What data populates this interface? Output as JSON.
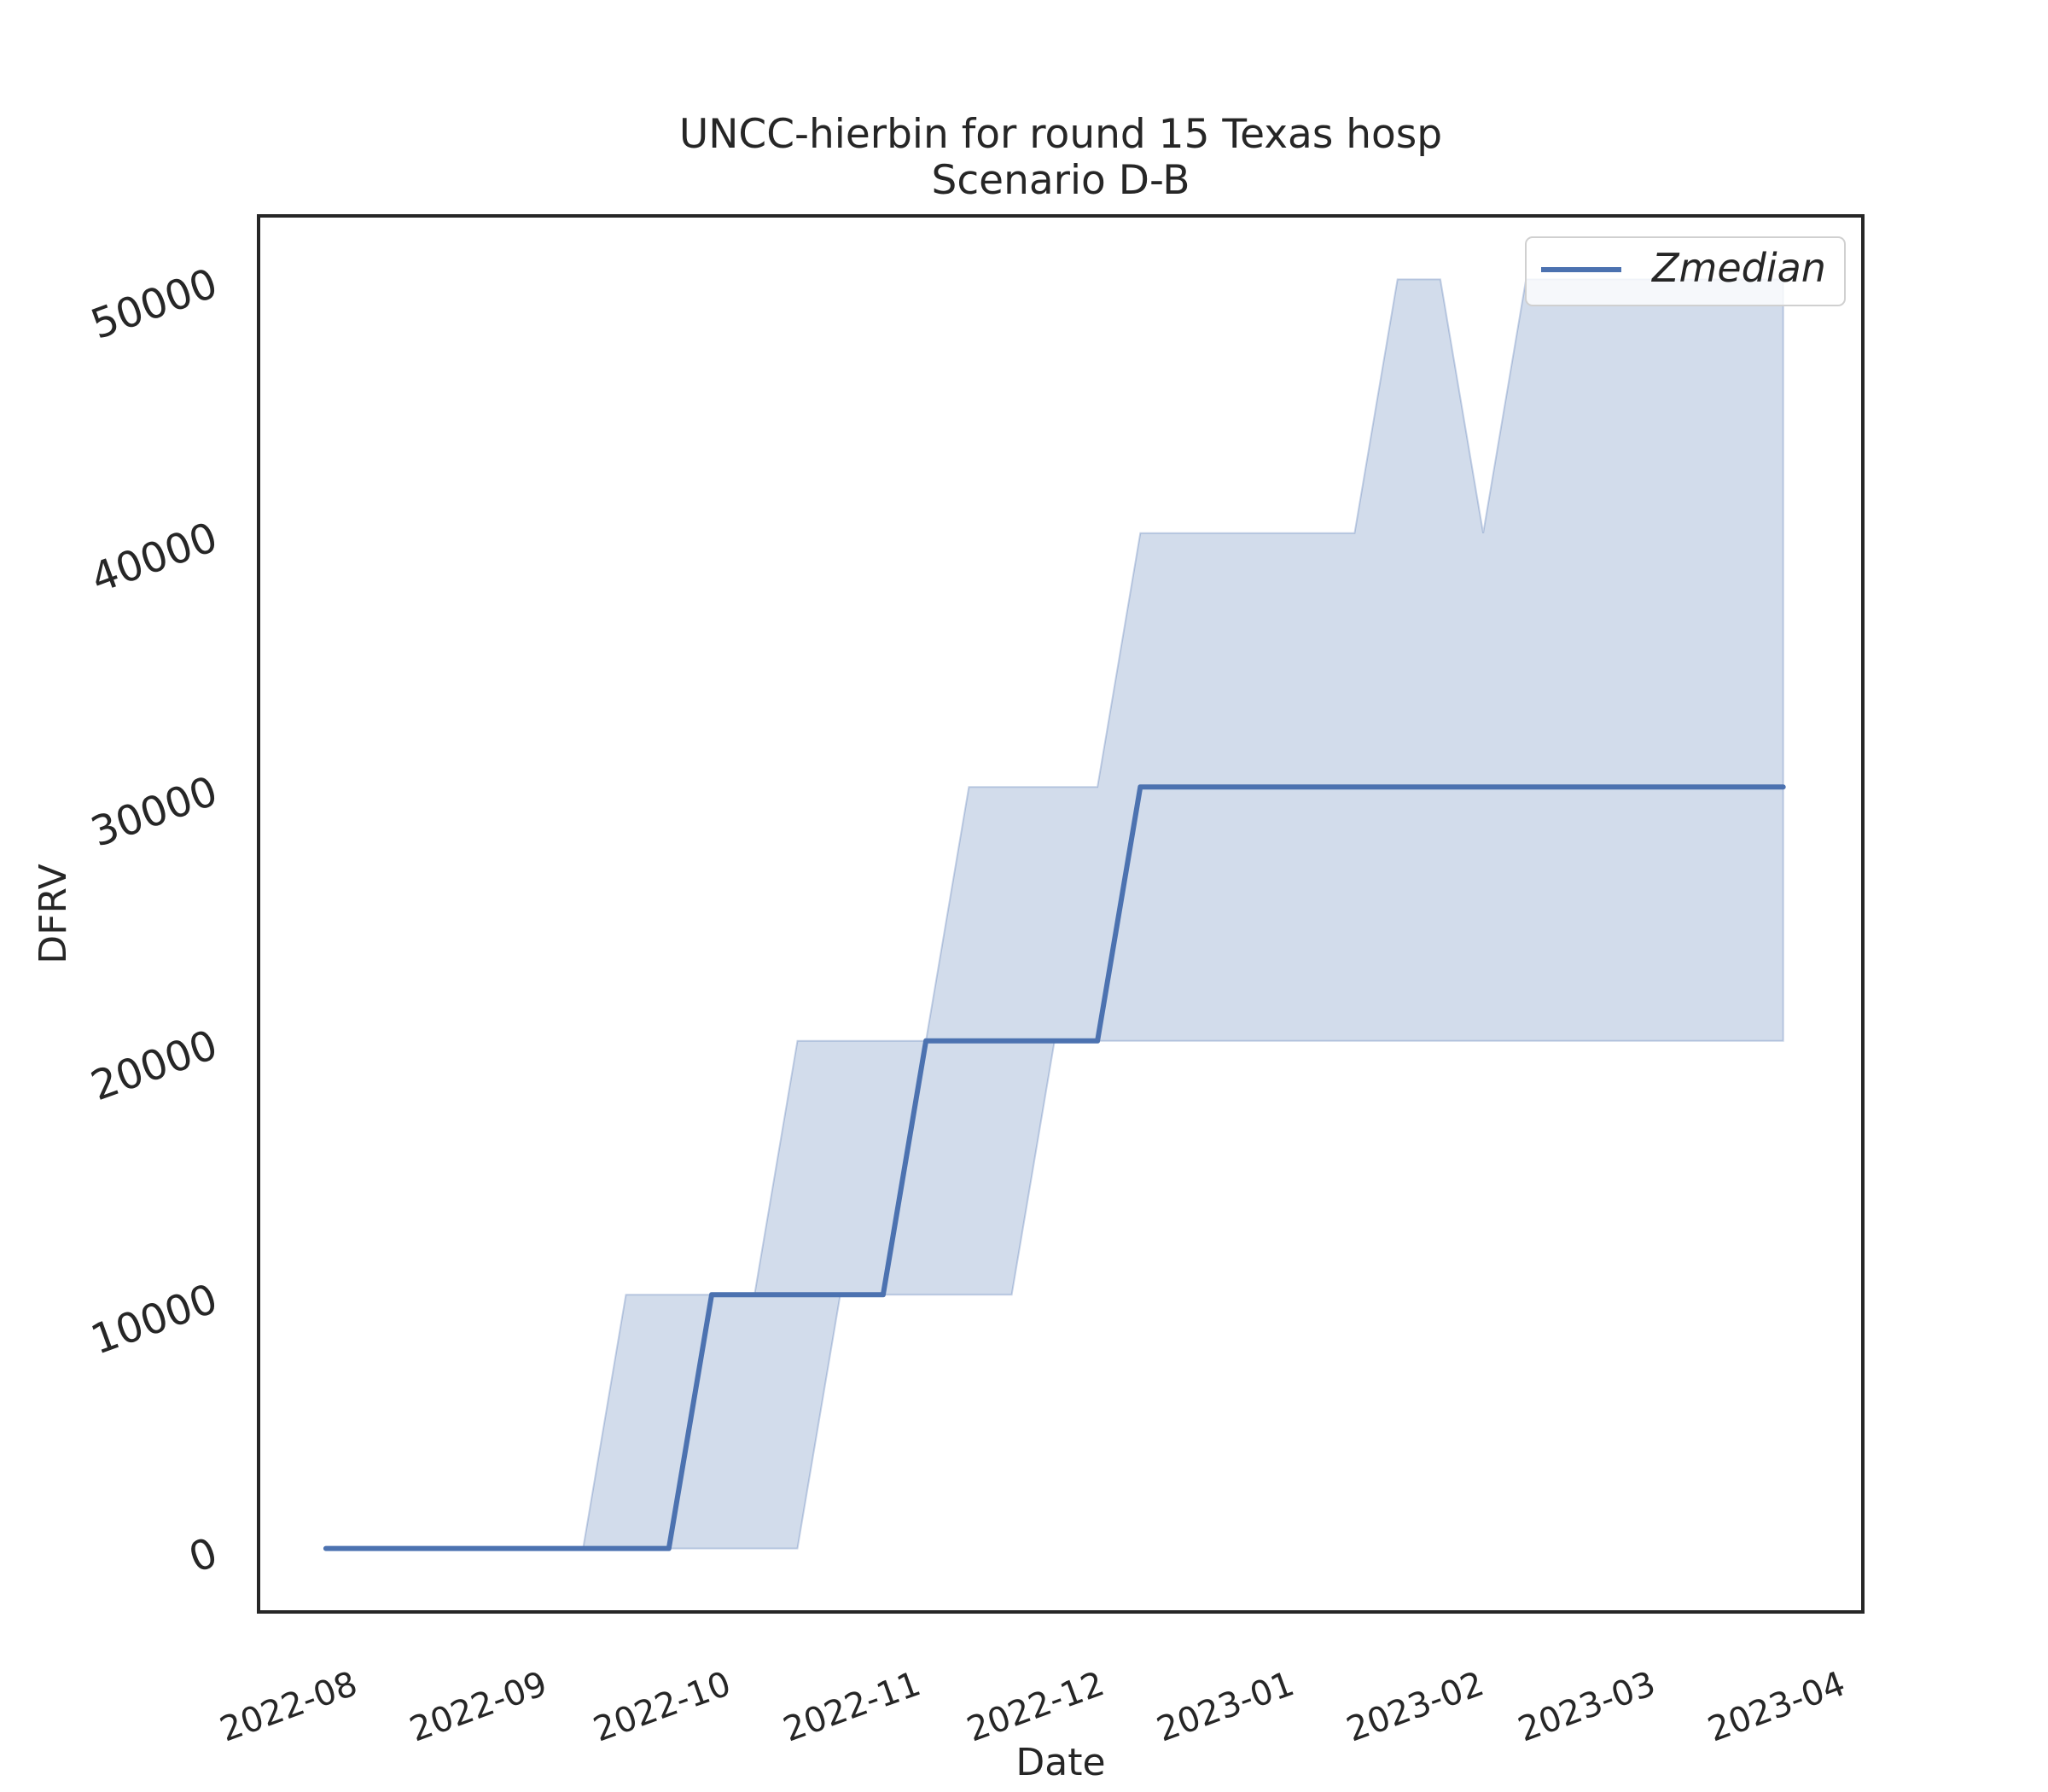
{
  "chart_data": {
    "type": "line",
    "title": "UNCC-hierbin for round 15 Texas hosp",
    "subtitle": "Scenario D-B",
    "xlabel": "Date",
    "ylabel": "DFRV",
    "x_ticks": [
      "2022-08",
      "2022-09",
      "2022-10",
      "2022-11",
      "2022-12",
      "2023-01",
      "2023-02",
      "2023-03",
      "2023-04"
    ],
    "y_ticks": [
      "0",
      "10000",
      "20000",
      "30000",
      "40000",
      "50000"
    ],
    "xlim": [
      "2022-07-19",
      "2023-04-07"
    ],
    "ylim": [
      -2500,
      52500
    ],
    "legend": {
      "position": "top-right",
      "entries": [
        "Zmedian"
      ]
    },
    "grid": false,
    "colors": {
      "line": "#4c72b0",
      "band": "#4c72b0"
    },
    "x": [
      "2022-07-30",
      "2022-08-06",
      "2022-08-13",
      "2022-08-20",
      "2022-08-27",
      "2022-09-03",
      "2022-09-10",
      "2022-09-17",
      "2022-09-24",
      "2022-10-01",
      "2022-10-08",
      "2022-10-15",
      "2022-10-22",
      "2022-10-29",
      "2022-11-05",
      "2022-11-12",
      "2022-11-19",
      "2022-11-26",
      "2022-12-03",
      "2022-12-10",
      "2022-12-17",
      "2022-12-24",
      "2022-12-31",
      "2023-01-07",
      "2023-01-14",
      "2023-01-21",
      "2023-01-28",
      "2023-02-04",
      "2023-02-11",
      "2023-02-18",
      "2023-02-25",
      "2023-03-04",
      "2023-03-11",
      "2023-03-18",
      "2023-03-25"
    ],
    "series": [
      {
        "name": "Zmedian",
        "values": [
          0,
          0,
          0,
          0,
          0,
          0,
          0,
          0,
          0,
          10000,
          10000,
          10000,
          10000,
          10000,
          20000,
          20000,
          20000,
          20000,
          20000,
          30000,
          30000,
          30000,
          30000,
          30000,
          30000,
          30000,
          30000,
          30000,
          30000,
          30000,
          30000,
          30000,
          30000,
          30000,
          30000
        ]
      }
    ],
    "band": {
      "lower": [
        0,
        0,
        0,
        0,
        0,
        0,
        0,
        0,
        0,
        0,
        0,
        0,
        10000,
        10000,
        10000,
        10000,
        10000,
        20000,
        20000,
        20000,
        20000,
        20000,
        20000,
        20000,
        20000,
        20000,
        20000,
        20000,
        20000,
        20000,
        20000,
        20000,
        20000,
        20000,
        20000
      ],
      "upper": [
        0,
        0,
        0,
        0,
        0,
        0,
        0,
        10000,
        10000,
        10000,
        10000,
        20000,
        20000,
        20000,
        20000,
        30000,
        30000,
        30000,
        30000,
        40000,
        40000,
        40000,
        40000,
        40000,
        40000,
        50000,
        50000,
        40000,
        50000,
        50000,
        50000,
        50000,
        50000,
        50000,
        50000
      ]
    }
  }
}
